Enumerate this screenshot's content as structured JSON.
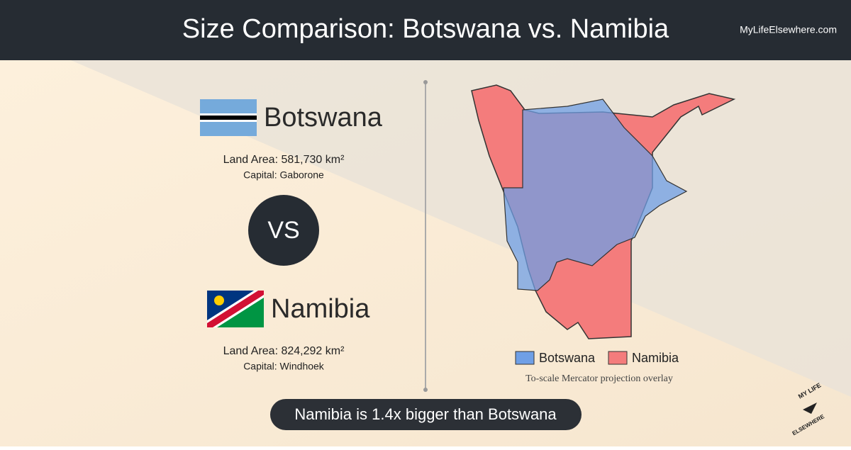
{
  "header": {
    "title": "Size Comparison: Botswana vs. Namibia",
    "site": "MyLifeElsewhere.com"
  },
  "countries": [
    {
      "name": "Botswana",
      "land_area": "Land Area: 581,730 km²",
      "capital": "Capital: Gaborone"
    },
    {
      "name": "Namibia",
      "land_area": "Land Area: 824,292 km²",
      "capital": "Capital: Windhoek"
    }
  ],
  "versus": "VS",
  "map": {
    "legend": [
      "Botswana",
      "Namibia"
    ],
    "note": "To-scale Mercator projection overlay"
  },
  "summary": "Namibia is 1.4x bigger than Botswana",
  "logo": {
    "top": "MY LIFE",
    "bottom": "ELSEWHERE"
  }
}
